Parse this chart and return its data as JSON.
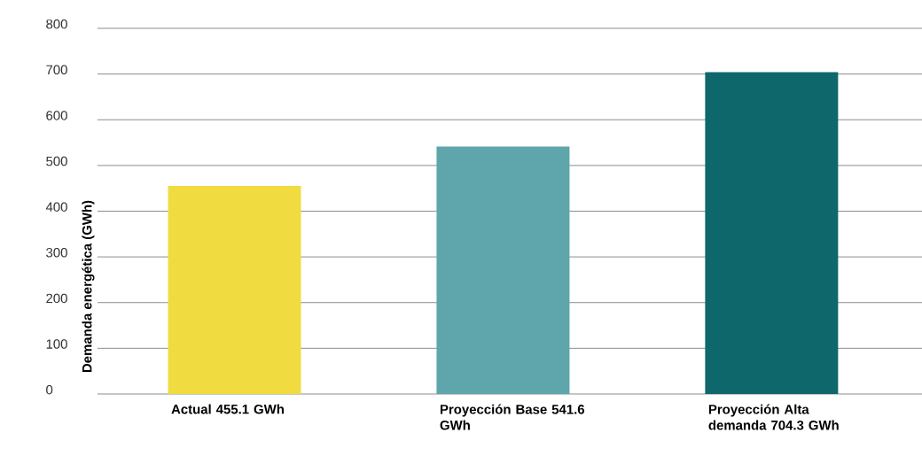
{
  "chart_data": {
    "type": "bar",
    "ylabel": "Demanda energética (GWh)",
    "categories": [
      "Actual 455.1 GWh",
      "Proyección Base 541.6 GWh",
      "Proyección Alta demanda 704.3 GWh"
    ],
    "values": [
      455.1,
      541.6,
      704.3
    ],
    "colors": [
      "#f0dc40",
      "#5ea6ab",
      "#0e686b"
    ],
    "ylim": [
      0,
      800
    ],
    "yticks": [
      0,
      100,
      200,
      300,
      400,
      500,
      600,
      700,
      800
    ],
    "grid": "y"
  }
}
